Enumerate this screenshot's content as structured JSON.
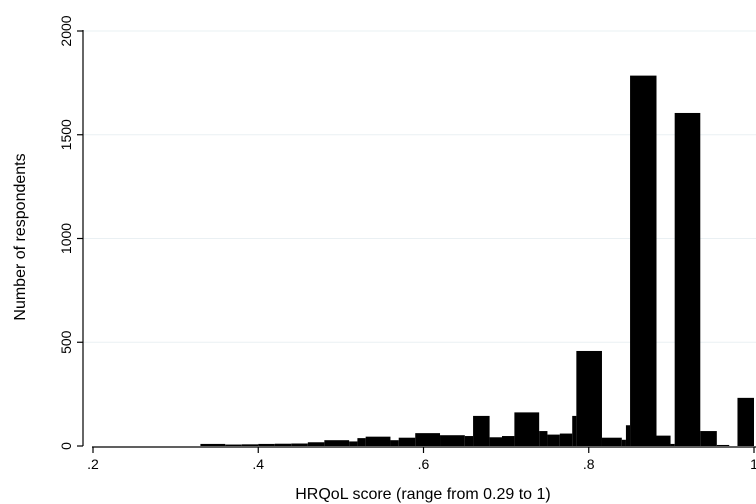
{
  "chart_data": {
    "type": "bar",
    "title": "",
    "xlabel": "HRQoL score (range from 0.29 to 1)",
    "ylabel": "Number of respondents",
    "xlim": [
      0.2,
      1.0
    ],
    "ylim": [
      0,
      2000
    ],
    "x_ticks": [
      0.2,
      0.4,
      0.6,
      0.8,
      1.0
    ],
    "x_tick_labels": [
      ".2",
      ".4",
      ".6",
      ".8",
      "1"
    ],
    "y_ticks": [
      0,
      500,
      1000,
      1500,
      2000
    ],
    "y_tick_labels": [
      "0",
      "500",
      "1000",
      "1500",
      "2000"
    ],
    "grid": "horizontal",
    "bar_color": "#000000",
    "grid_color": "#eaf0f3",
    "bins": [
      {
        "start": 0.33,
        "end": 0.36,
        "count": 10
      },
      {
        "start": 0.36,
        "end": 0.38,
        "count": 7
      },
      {
        "start": 0.38,
        "end": 0.4,
        "count": 8
      },
      {
        "start": 0.4,
        "end": 0.42,
        "count": 10
      },
      {
        "start": 0.42,
        "end": 0.44,
        "count": 11
      },
      {
        "start": 0.44,
        "end": 0.46,
        "count": 12
      },
      {
        "start": 0.46,
        "end": 0.48,
        "count": 18
      },
      {
        "start": 0.48,
        "end": 0.51,
        "count": 28
      },
      {
        "start": 0.51,
        "end": 0.52,
        "count": 22
      },
      {
        "start": 0.52,
        "end": 0.53,
        "count": 38
      },
      {
        "start": 0.53,
        "end": 0.56,
        "count": 45
      },
      {
        "start": 0.56,
        "end": 0.57,
        "count": 28
      },
      {
        "start": 0.57,
        "end": 0.59,
        "count": 40
      },
      {
        "start": 0.59,
        "end": 0.62,
        "count": 62
      },
      {
        "start": 0.62,
        "end": 0.65,
        "count": 52
      },
      {
        "start": 0.65,
        "end": 0.66,
        "count": 48
      },
      {
        "start": 0.66,
        "end": 0.68,
        "count": 145
      },
      {
        "start": 0.68,
        "end": 0.695,
        "count": 42
      },
      {
        "start": 0.695,
        "end": 0.71,
        "count": 48
      },
      {
        "start": 0.71,
        "end": 0.74,
        "count": 162
      },
      {
        "start": 0.74,
        "end": 0.75,
        "count": 72
      },
      {
        "start": 0.75,
        "end": 0.765,
        "count": 55
      },
      {
        "start": 0.765,
        "end": 0.78,
        "count": 60
      },
      {
        "start": 0.78,
        "end": 0.785,
        "count": 145
      },
      {
        "start": 0.785,
        "end": 0.816,
        "count": 458
      },
      {
        "start": 0.816,
        "end": 0.84,
        "count": 40
      },
      {
        "start": 0.84,
        "end": 0.845,
        "count": 30
      },
      {
        "start": 0.845,
        "end": 0.85,
        "count": 100
      },
      {
        "start": 0.85,
        "end": 0.882,
        "count": 1785
      },
      {
        "start": 0.882,
        "end": 0.899,
        "count": 50
      },
      {
        "start": 0.899,
        "end": 0.904,
        "count": 10
      },
      {
        "start": 0.904,
        "end": 0.935,
        "count": 1605
      },
      {
        "start": 0.935,
        "end": 0.955,
        "count": 72
      },
      {
        "start": 0.955,
        "end": 0.97,
        "count": 5
      },
      {
        "start": 0.98,
        "end": 1.0,
        "count": 232
      }
    ]
  }
}
